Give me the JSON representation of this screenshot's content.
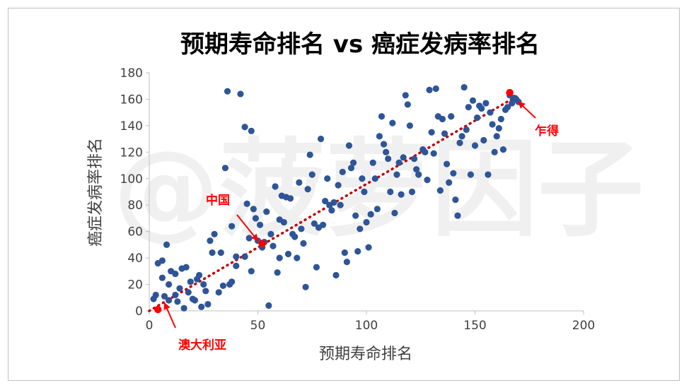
{
  "chart_data": {
    "type": "scatter",
    "title": "预期寿命排名 vs 癌症发病率排名",
    "xlabel": "预期寿命排名",
    "ylabel": "癌症发病率排名",
    "xlim": [
      0,
      200
    ],
    "ylim": [
      0,
      180
    ],
    "xticks": [
      0,
      50,
      100,
      150,
      200
    ],
    "yticks": [
      0,
      20,
      40,
      60,
      80,
      100,
      120,
      140,
      160,
      180
    ],
    "grid": false,
    "point_color": "#2e5597",
    "highlight_color": "#ff0000",
    "trendline": {
      "style": "dotted",
      "color": "#c00000",
      "from": [
        0,
        0
      ],
      "to": [
        170,
        163
      ]
    },
    "watermark": "@菠萝因子",
    "points": [
      [
        2,
        9
      ],
      [
        3,
        12
      ],
      [
        4,
        36
      ],
      [
        6,
        25
      ],
      [
        6,
        38
      ],
      [
        7,
        11
      ],
      [
        8,
        50
      ],
      [
        9,
        8
      ],
      [
        9,
        20
      ],
      [
        10,
        30
      ],
      [
        12,
        12
      ],
      [
        12,
        28
      ],
      [
        13,
        7
      ],
      [
        14,
        17
      ],
      [
        15,
        32
      ],
      [
        16,
        2
      ],
      [
        17,
        33
      ],
      [
        18,
        14
      ],
      [
        19,
        22
      ],
      [
        20,
        9
      ],
      [
        21,
        8
      ],
      [
        22,
        24
      ],
      [
        23,
        27
      ],
      [
        24,
        3
      ],
      [
        25,
        20
      ],
      [
        26,
        15
      ],
      [
        27,
        5
      ],
      [
        28,
        53
      ],
      [
        29,
        44
      ],
      [
        30,
        58
      ],
      [
        32,
        14
      ],
      [
        33,
        44
      ],
      [
        34,
        19
      ],
      [
        35,
        108
      ],
      [
        36,
        166
      ],
      [
        37,
        20
      ],
      [
        38,
        64
      ],
      [
        38,
        22
      ],
      [
        40,
        34
      ],
      [
        40,
        41
      ],
      [
        42,
        164
      ],
      [
        44,
        41
      ],
      [
        44,
        139
      ],
      [
        45,
        81
      ],
      [
        46,
        55
      ],
      [
        47,
        30
      ],
      [
        47,
        136
      ],
      [
        48,
        77
      ],
      [
        49,
        70
      ],
      [
        50,
        53
      ],
      [
        51,
        65
      ],
      [
        52,
        48
      ],
      [
        53,
        52
      ],
      [
        54,
        75
      ],
      [
        55,
        4
      ],
      [
        56,
        58
      ],
      [
        57,
        49
      ],
      [
        58,
        94
      ],
      [
        59,
        29
      ],
      [
        60,
        69
      ],
      [
        60,
        40
      ],
      [
        61,
        87
      ],
      [
        62,
        67
      ],
      [
        63,
        86
      ],
      [
        64,
        43
      ],
      [
        65,
        85
      ],
      [
        66,
        58
      ],
      [
        67,
        56
      ],
      [
        68,
        40
      ],
      [
        69,
        97
      ],
      [
        70,
        62
      ],
      [
        71,
        51
      ],
      [
        72,
        18
      ],
      [
        73,
        92
      ],
      [
        74,
        118
      ],
      [
        75,
        103
      ],
      [
        76,
        66
      ],
      [
        77,
        33
      ],
      [
        78,
        63
      ],
      [
        79,
        130
      ],
      [
        80,
        65
      ],
      [
        81,
        83
      ],
      [
        82,
        100
      ],
      [
        83,
        80
      ],
      [
        84,
        76
      ],
      [
        85,
        82
      ],
      [
        86,
        27
      ],
      [
        87,
        95
      ],
      [
        88,
        80
      ],
      [
        89,
        105
      ],
      [
        90,
        44
      ],
      [
        91,
        37
      ],
      [
        92,
        125
      ],
      [
        93,
        108
      ],
      [
        94,
        112
      ],
      [
        95,
        72
      ],
      [
        96,
        45
      ],
      [
        97,
        62
      ],
      [
        98,
        100
      ],
      [
        99,
        90
      ],
      [
        100,
        67
      ],
      [
        101,
        48
      ],
      [
        102,
        73
      ],
      [
        103,
        112
      ],
      [
        104,
        100
      ],
      [
        105,
        77
      ],
      [
        106,
        132
      ],
      [
        107,
        147
      ],
      [
        108,
        126
      ],
      [
        109,
        120
      ],
      [
        110,
        115
      ],
      [
        111,
        90
      ],
      [
        112,
        142
      ],
      [
        113,
        74
      ],
      [
        114,
        103
      ],
      [
        115,
        112
      ],
      [
        116,
        88
      ],
      [
        117,
        116
      ],
      [
        118,
        163
      ],
      [
        119,
        156
      ],
      [
        120,
        140
      ],
      [
        121,
        90
      ],
      [
        122,
        115
      ],
      [
        123,
        107
      ],
      [
        124,
        103
      ],
      [
        126,
        122
      ],
      [
        127,
        120
      ],
      [
        128,
        99
      ],
      [
        129,
        167
      ],
      [
        130,
        135
      ],
      [
        131,
        119
      ],
      [
        132,
        168
      ],
      [
        133,
        147
      ],
      [
        134,
        91
      ],
      [
        135,
        145
      ],
      [
        136,
        134
      ],
      [
        137,
        111
      ],
      [
        138,
        97
      ],
      [
        139,
        147
      ],
      [
        140,
        104
      ],
      [
        141,
        84
      ],
      [
        142,
        72
      ],
      [
        143,
        127
      ],
      [
        144,
        132
      ],
      [
        145,
        169
      ],
      [
        146,
        137
      ],
      [
        147,
        154
      ],
      [
        148,
        103
      ],
      [
        149,
        159
      ],
      [
        150,
        125
      ],
      [
        151,
        146
      ],
      [
        152,
        155
      ],
      [
        153,
        153
      ],
      [
        154,
        129
      ],
      [
        155,
        157
      ],
      [
        156,
        103
      ],
      [
        157,
        150
      ],
      [
        158,
        141
      ],
      [
        159,
        120
      ],
      [
        160,
        132
      ],
      [
        161,
        138
      ],
      [
        162,
        145
      ],
      [
        163,
        122
      ],
      [
        164,
        152
      ],
      [
        165,
        154
      ],
      [
        166,
        163
      ],
      [
        167,
        157
      ],
      [
        168,
        161
      ],
      [
        169,
        160
      ],
      [
        170,
        158
      ]
    ],
    "highlighted": [
      {
        "name": "澳大利亚",
        "x": 4,
        "y": 1
      },
      {
        "name": "中国",
        "x": 52,
        "y": 51
      },
      {
        "name": "乍得",
        "x": 166,
        "y": 165
      }
    ],
    "annotations": [
      {
        "text": "澳大利亚",
        "arrow_to": [
          7,
          6
        ]
      },
      {
        "text": "中国",
        "arrow_to": [
          50,
          53
        ]
      },
      {
        "text": "乍得",
        "arrow_to": [
          170,
          158
        ]
      }
    ]
  }
}
